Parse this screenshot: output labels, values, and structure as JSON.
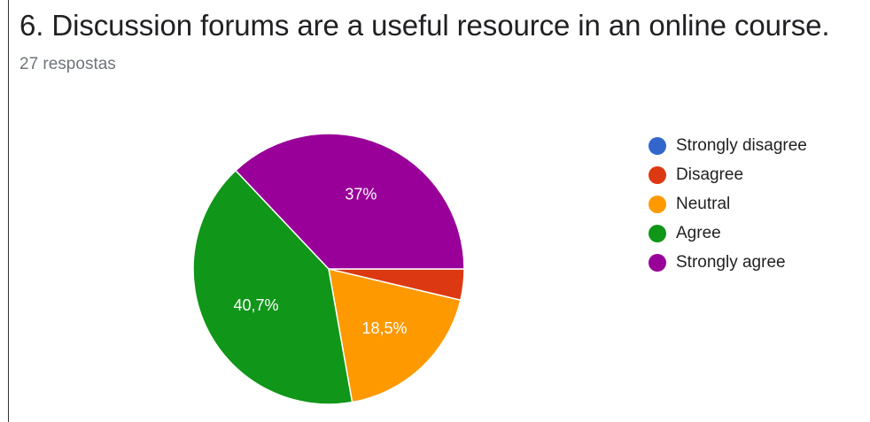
{
  "header": {
    "title": "6. Discussion forums are a useful resource in an online course.",
    "responses": "27 respostas"
  },
  "chart_data": {
    "type": "pie",
    "categories": [
      "Strongly disagree",
      "Disagree",
      "Neutral",
      "Agree",
      "Strongly agree"
    ],
    "values": [
      0,
      1,
      5,
      11,
      10
    ],
    "percent_labels": [
      "",
      "",
      "18,5%",
      "40,7%",
      "37%"
    ],
    "colors": [
      "#3366cc",
      "#dc3912",
      "#ff9900",
      "#109618",
      "#990099"
    ],
    "legend_position": "right",
    "start": "3 o'clock, clockwise"
  }
}
